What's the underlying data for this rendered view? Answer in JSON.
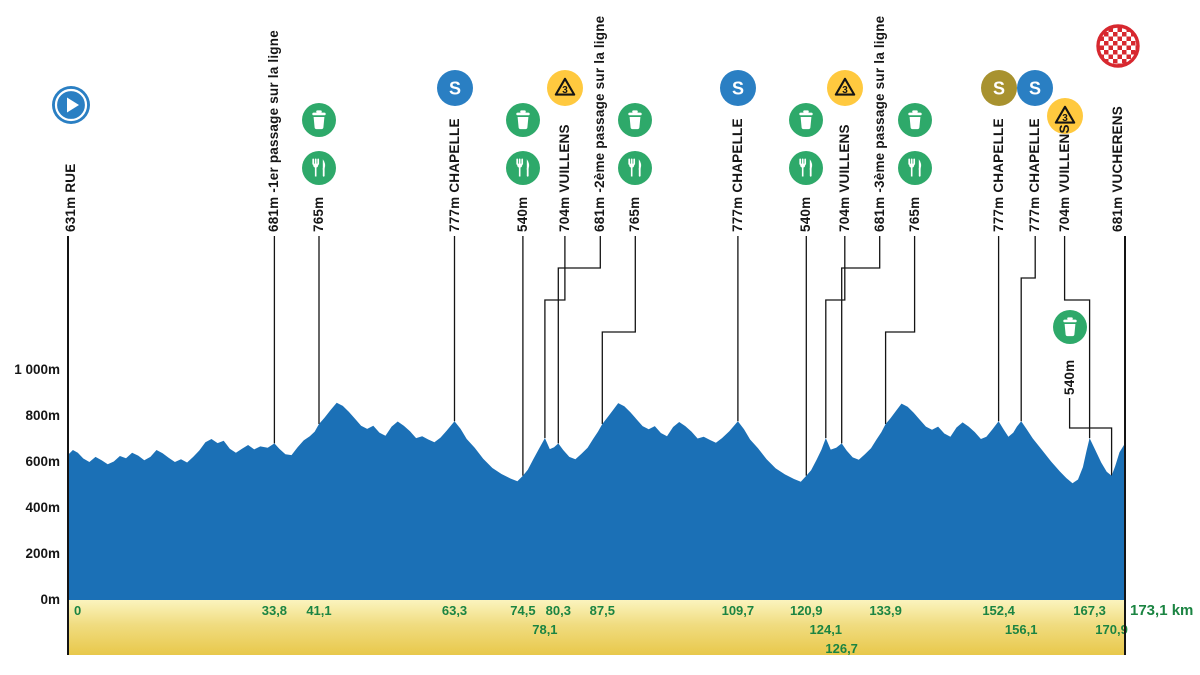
{
  "chart_data": {
    "type": "area",
    "x_unit": "km",
    "xlim": [
      0,
      173.1
    ],
    "ylim_m": [
      0,
      1400
    ],
    "profile_color": "#1B70B6",
    "grid": false,
    "y_ticks": [
      {
        "value": 1000,
        "label": "1 000m"
      },
      {
        "value": 800,
        "label": "800m"
      },
      {
        "value": 600,
        "label": "600m"
      },
      {
        "value": 400,
        "label": "400m"
      },
      {
        "value": 200,
        "label": "200m"
      },
      {
        "value": 0,
        "label": "0m"
      }
    ],
    "waypoints": [
      {
        "km": 0,
        "km_label": "0",
        "elevation_label": "631m",
        "name": "RUE",
        "icons": [
          "start"
        ],
        "line": "full"
      },
      {
        "km": 33.8,
        "km_label": "33,8",
        "elevation_label": "681m",
        "name": "-1er passage sur la ligne",
        "icons": []
      },
      {
        "km": 41.1,
        "km_label": "41,1",
        "elevation_label": "765m",
        "name": "",
        "icons": [
          "litter",
          "feed"
        ]
      },
      {
        "km": 63.3,
        "km_label": "63,3",
        "elevation_label": "777m",
        "name": "CHAPELLE",
        "icons": [
          "sprint"
        ]
      },
      {
        "km": 74.5,
        "km_label": "74,5",
        "elevation_label": "540m",
        "name": "",
        "icons": [
          "litter",
          "feed"
        ]
      },
      {
        "km": 78.1,
        "km_label": "78,1",
        "elevation_label": "704m",
        "name": "VUILLENS",
        "icons": [
          "climb3"
        ],
        "km_row": 1
      },
      {
        "km": 80.3,
        "km_label": "80,3",
        "elevation_label": "681m",
        "name": "-2ème passage sur la ligne",
        "icons": []
      },
      {
        "km": 87.5,
        "km_label": "87,5",
        "elevation_label": "765m",
        "name": "",
        "icons": [
          "litter",
          "feed"
        ]
      },
      {
        "km": 109.7,
        "km_label": "109,7",
        "elevation_label": "777m",
        "name": "CHAPELLE",
        "icons": [
          "sprint"
        ]
      },
      {
        "km": 120.9,
        "km_label": "120,9",
        "elevation_label": "540m",
        "name": "",
        "icons": [
          "litter",
          "feed"
        ]
      },
      {
        "km": 124.1,
        "km_label": "124,1",
        "elevation_label": "704m",
        "name": "VUILLENS",
        "icons": [
          "climb3"
        ],
        "km_row": 1
      },
      {
        "km": 126.7,
        "km_label": "126,7",
        "elevation_label": "681m",
        "name": "-3ème passage sur la ligne",
        "icons": [],
        "km_row": 2
      },
      {
        "km": 133.9,
        "km_label": "133,9",
        "elevation_label": "765m",
        "name": "",
        "icons": [
          "litter",
          "feed"
        ]
      },
      {
        "km": 152.4,
        "km_label": "152,4",
        "elevation_label": "777m",
        "name": "CHAPELLE",
        "icons": [
          "sprint-gold"
        ]
      },
      {
        "km": 156.1,
        "km_label": "156,1",
        "elevation_label": "777m",
        "name": "CHAPELLE",
        "icons": [
          "sprint"
        ],
        "km_row": 1
      },
      {
        "km": 167.3,
        "km_label": "167,3",
        "elevation_label": "704m",
        "name": "VUILLENS",
        "icons": [
          "climb3"
        ]
      },
      {
        "km": 170.9,
        "km_label": "170,9",
        "elevation_label": "540m",
        "name": "",
        "icons": [
          "litter"
        ],
        "low_stack": true,
        "km_row": 1
      },
      {
        "km": 173.1,
        "km_label": "173,1 km",
        "elevation_label": "681m",
        "name": "VUCHERENS",
        "icons": [
          "finish"
        ],
        "line": "full",
        "km_label_outside": true
      }
    ],
    "icon_colors": {
      "green": "#2EA96A",
      "blue": "#2A7FC3",
      "gold": "#A8922F",
      "yellow": "#FFC93F",
      "finish_red": "#D7282F"
    },
    "bottom_bar": {
      "top_color": "#FBF4BE",
      "bottom_color": "#E8C84B",
      "km_text_color": "#1B8442"
    },
    "profile": [
      [
        0,
        631
      ],
      [
        0.8,
        652
      ],
      [
        1.6,
        640
      ],
      [
        2.5,
        615
      ],
      [
        3.5,
        600
      ],
      [
        4.5,
        622
      ],
      [
        5.5,
        608
      ],
      [
        6.5,
        590
      ],
      [
        7.5,
        602
      ],
      [
        8.5,
        626
      ],
      [
        9.5,
        616
      ],
      [
        10.5,
        640
      ],
      [
        11.5,
        628
      ],
      [
        12.5,
        608
      ],
      [
        13.5,
        622
      ],
      [
        14.5,
        652
      ],
      [
        15.5,
        638
      ],
      [
        16.5,
        618
      ],
      [
        17.5,
        600
      ],
      [
        18.5,
        612
      ],
      [
        19.5,
        598
      ],
      [
        20.5,
        622
      ],
      [
        21.5,
        650
      ],
      [
        22.5,
        686
      ],
      [
        23.5,
        700
      ],
      [
        24.5,
        682
      ],
      [
        25.5,
        692
      ],
      [
        26.5,
        658
      ],
      [
        27.5,
        640
      ],
      [
        28.5,
        658
      ],
      [
        29.5,
        674
      ],
      [
        30.5,
        655
      ],
      [
        31.5,
        668
      ],
      [
        32.7,
        662
      ],
      [
        33.8,
        681
      ],
      [
        34.6,
        658
      ],
      [
        35.6,
        634
      ],
      [
        36.6,
        630
      ],
      [
        37.6,
        664
      ],
      [
        38.6,
        694
      ],
      [
        39.6,
        712
      ],
      [
        40.4,
        732
      ],
      [
        41.1,
        765
      ],
      [
        42,
        792
      ],
      [
        43,
        826
      ],
      [
        44,
        858
      ],
      [
        45,
        844
      ],
      [
        46,
        818
      ],
      [
        47,
        788
      ],
      [
        48,
        758
      ],
      [
        49,
        744
      ],
      [
        50,
        758
      ],
      [
        51,
        728
      ],
      [
        52,
        714
      ],
      [
        53,
        754
      ],
      [
        54,
        776
      ],
      [
        55,
        758
      ],
      [
        56,
        734
      ],
      [
        57,
        704
      ],
      [
        58,
        712
      ],
      [
        59,
        698
      ],
      [
        60,
        686
      ],
      [
        61,
        706
      ],
      [
        62,
        736
      ],
      [
        63.3,
        777
      ],
      [
        64.3,
        744
      ],
      [
        65.3,
        700
      ],
      [
        66.6,
        662
      ],
      [
        68,
        614
      ],
      [
        69.5,
        574
      ],
      [
        71,
        548
      ],
      [
        72.5,
        528
      ],
      [
        73.6,
        516
      ],
      [
        74.5,
        540
      ],
      [
        75.3,
        566
      ],
      [
        76.2,
        612
      ],
      [
        77.1,
        656
      ],
      [
        78.1,
        704
      ],
      [
        78.9,
        656
      ],
      [
        79.6,
        664
      ],
      [
        80.3,
        681
      ],
      [
        81.1,
        652
      ],
      [
        82.1,
        622
      ],
      [
        83.1,
        612
      ],
      [
        84.1,
        636
      ],
      [
        85.1,
        662
      ],
      [
        86,
        700
      ],
      [
        86.8,
        732
      ],
      [
        87.5,
        765
      ],
      [
        88.3,
        792
      ],
      [
        89.2,
        824
      ],
      [
        90.1,
        856
      ],
      [
        91.1,
        842
      ],
      [
        92.1,
        816
      ],
      [
        93.1,
        786
      ],
      [
        94.1,
        756
      ],
      [
        95.1,
        742
      ],
      [
        96.1,
        756
      ],
      [
        97.1,
        726
      ],
      [
        98.1,
        712
      ],
      [
        99.1,
        752
      ],
      [
        100.1,
        774
      ],
      [
        101.1,
        756
      ],
      [
        102.1,
        732
      ],
      [
        103.1,
        702
      ],
      [
        104.1,
        710
      ],
      [
        105.1,
        696
      ],
      [
        106.1,
        684
      ],
      [
        107.1,
        704
      ],
      [
        108.3,
        734
      ],
      [
        109.7,
        777
      ],
      [
        110.7,
        742
      ],
      [
        111.7,
        698
      ],
      [
        113,
        660
      ],
      [
        114.4,
        612
      ],
      [
        115.9,
        572
      ],
      [
        117.4,
        546
      ],
      [
        118.9,
        526
      ],
      [
        120,
        514
      ],
      [
        120.9,
        540
      ],
      [
        121.7,
        564
      ],
      [
        122.6,
        610
      ],
      [
        123.4,
        654
      ],
      [
        124.1,
        704
      ],
      [
        124.9,
        654
      ],
      [
        125.8,
        662
      ],
      [
        126.7,
        681
      ],
      [
        127.5,
        650
      ],
      [
        128.5,
        620
      ],
      [
        129.5,
        610
      ],
      [
        130.5,
        634
      ],
      [
        131.5,
        660
      ],
      [
        132.4,
        698
      ],
      [
        133.2,
        730
      ],
      [
        133.9,
        765
      ],
      [
        134.7,
        790
      ],
      [
        135.6,
        822
      ],
      [
        136.5,
        854
      ],
      [
        137.5,
        840
      ],
      [
        138.5,
        814
      ],
      [
        139.5,
        784
      ],
      [
        140.5,
        754
      ],
      [
        141.5,
        740
      ],
      [
        142.5,
        754
      ],
      [
        143.5,
        724
      ],
      [
        144.5,
        710
      ],
      [
        145.5,
        750
      ],
      [
        146.5,
        772
      ],
      [
        147.5,
        754
      ],
      [
        148.5,
        730
      ],
      [
        149.5,
        700
      ],
      [
        150.4,
        710
      ],
      [
        151.4,
        742
      ],
      [
        152.4,
        777
      ],
      [
        153.2,
        742
      ],
      [
        154,
        710
      ],
      [
        154.8,
        728
      ],
      [
        155.4,
        754
      ],
      [
        156.1,
        777
      ],
      [
        157,
        742
      ],
      [
        158,
        702
      ],
      [
        159.5,
        652
      ],
      [
        161,
        602
      ],
      [
        162.4,
        560
      ],
      [
        163.5,
        530
      ],
      [
        164.5,
        508
      ],
      [
        165.4,
        524
      ],
      [
        166.2,
        578
      ],
      [
        166.8,
        648
      ],
      [
        167.3,
        704
      ],
      [
        168.2,
        654
      ],
      [
        169.2,
        598
      ],
      [
        170.1,
        558
      ],
      [
        170.9,
        540
      ],
      [
        171.5,
        582
      ],
      [
        172.2,
        642
      ],
      [
        173.1,
        681
      ]
    ]
  }
}
